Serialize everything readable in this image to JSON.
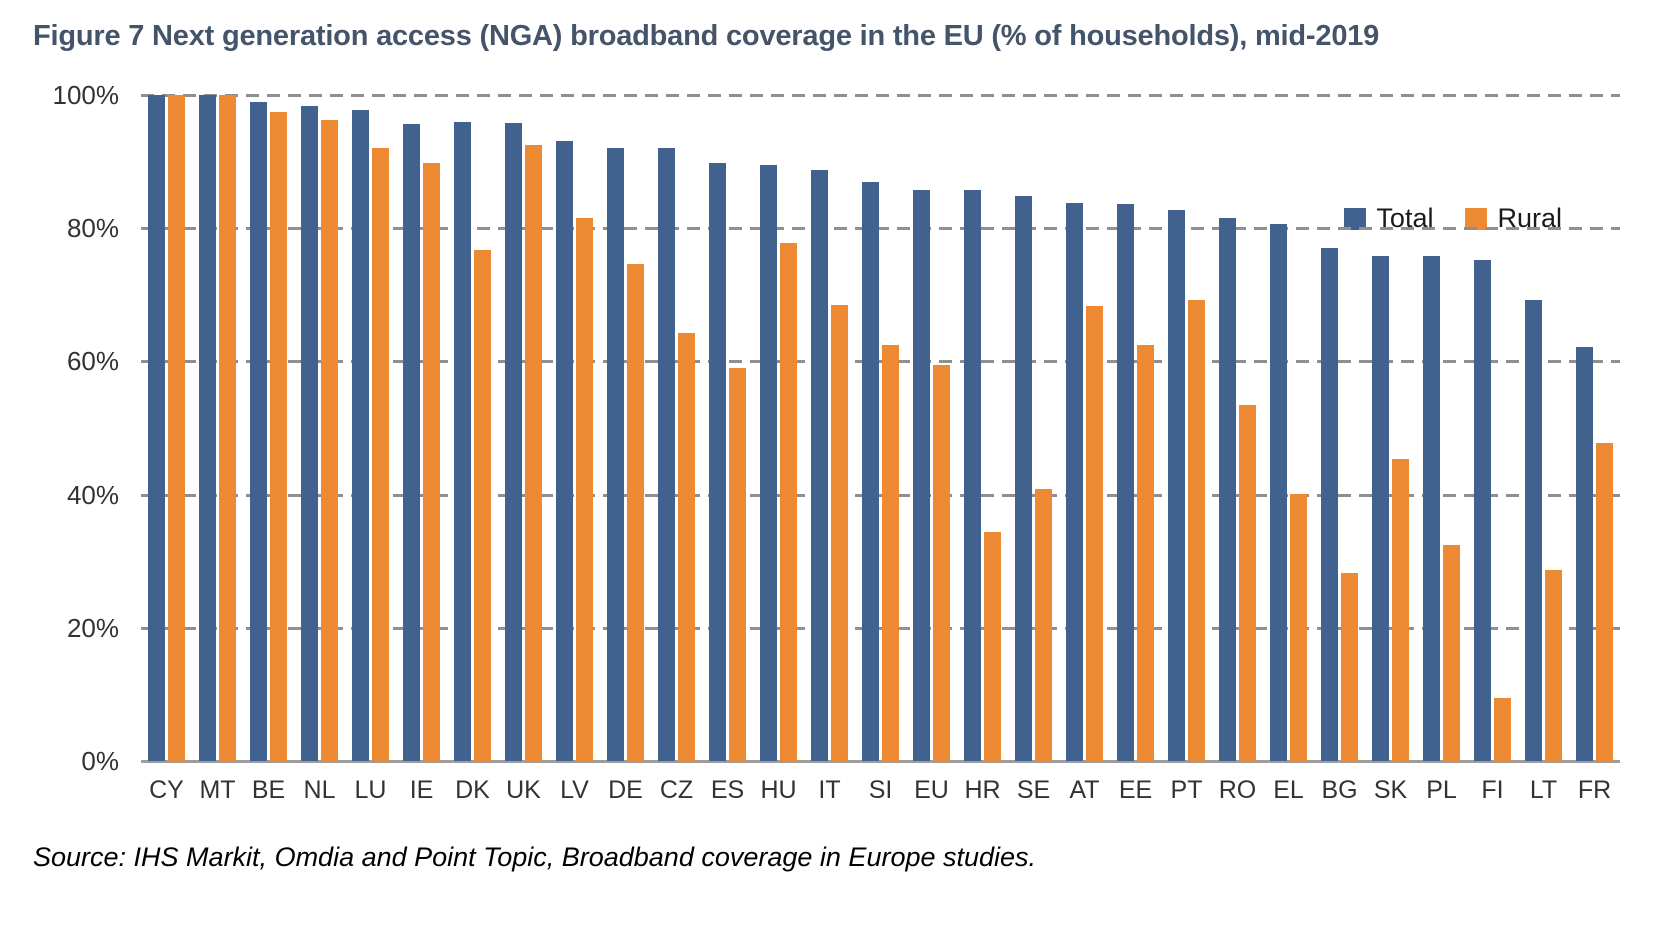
{
  "title": "Figure 7 Next generation access (NGA) broadband coverage in the EU (% of households), mid-2019",
  "source": "Source: IHS Markit, Omdia and Point Topic, Broadband coverage in Europe studies.",
  "legend": {
    "total_label": "Total",
    "rural_label": "Rural"
  },
  "colors": {
    "total": "#41618F",
    "rural": "#ED8933",
    "title": "#44546A",
    "gridline": "#8F8F8F",
    "axis_line": "#9D9D9D",
    "tick_label": "#333333"
  },
  "y_axis": {
    "ticks": [
      "100%",
      "80%",
      "60%",
      "40%",
      "20%",
      "0%"
    ],
    "min": 0,
    "max": 100,
    "step": 20
  },
  "chart_data": {
    "type": "bar",
    "title": "Figure 7 Next generation access (NGA) broadband coverage in the EU (% of households), mid-2019",
    "xlabel": "",
    "ylabel": "% of households",
    "ylim": [
      0,
      100
    ],
    "grid": "horizontal-dashed",
    "legend_position": "top-right",
    "categories": [
      "CY",
      "MT",
      "BE",
      "NL",
      "LU",
      "IE",
      "DK",
      "UK",
      "LV",
      "DE",
      "CZ",
      "ES",
      "HU",
      "IT",
      "SI",
      "EU",
      "HR",
      "SE",
      "AT",
      "EE",
      "PT",
      "RO",
      "EL",
      "BG",
      "SK",
      "PL",
      "FI",
      "LT",
      "FR"
    ],
    "series": [
      {
        "name": "Total",
        "values": [
          100,
          100,
          98.9,
          98.3,
          97.7,
          95.7,
          95.9,
          95.8,
          93.1,
          92,
          92,
          89.8,
          89.5,
          88.7,
          87,
          85.8,
          85.7,
          84.8,
          83.8,
          83.6,
          82.8,
          81.6,
          80.6,
          77,
          75.9,
          75.9,
          75.3,
          69.2,
          62.1
        ]
      },
      {
        "name": "Rural",
        "values": [
          100,
          100,
          97.4,
          96.2,
          92.1,
          89.8,
          76.8,
          92.5,
          81.6,
          74.7,
          64.3,
          59,
          77.8,
          68.5,
          62.4,
          59.5,
          34.4,
          40.9,
          68.3,
          62.4,
          69.2,
          53.4,
          40.1,
          28.3,
          45.3,
          32.5,
          9.4,
          28.7,
          47.7
        ]
      }
    ]
  }
}
